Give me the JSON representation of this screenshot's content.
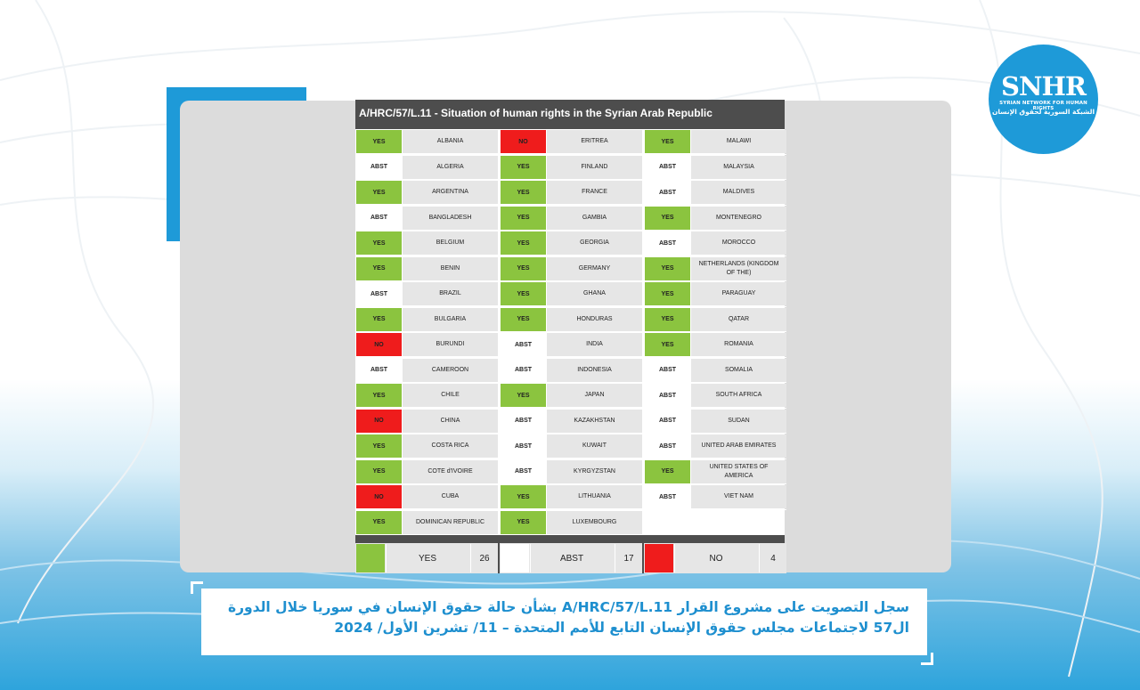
{
  "logo": {
    "mark": "SNHR",
    "tagline_en": "SYRIAN NETWORK FOR HUMAN RIGHTS",
    "tagline_ar": "الشبكة السورية لحقوق الإنسان"
  },
  "title": "A/HRC/57/L.11 - Situation of human rights in the Syrian Arab Republic",
  "columns": [
    [
      {
        "vote": "YES",
        "country": "ALBANIA"
      },
      {
        "vote": "ABST",
        "country": "ALGERIA"
      },
      {
        "vote": "YES",
        "country": "ARGENTINA"
      },
      {
        "vote": "ABST",
        "country": "BANGLADESH"
      },
      {
        "vote": "YES",
        "country": "BELGIUM"
      },
      {
        "vote": "YES",
        "country": "BENIN"
      },
      {
        "vote": "ABST",
        "country": "BRAZIL"
      },
      {
        "vote": "YES",
        "country": "BULGARIA"
      },
      {
        "vote": "NO",
        "country": "BURUNDI"
      },
      {
        "vote": "ABST",
        "country": "CAMEROON"
      },
      {
        "vote": "YES",
        "country": "CHILE"
      },
      {
        "vote": "NO",
        "country": "CHINA"
      },
      {
        "vote": "YES",
        "country": "COSTA RICA"
      },
      {
        "vote": "YES",
        "country": "COTE d'IVOIRE"
      },
      {
        "vote": "NO",
        "country": "CUBA"
      },
      {
        "vote": "YES",
        "country": "DOMINICAN REPUBLIC"
      }
    ],
    [
      {
        "vote": "NO",
        "country": "ERITREA"
      },
      {
        "vote": "YES",
        "country": "FINLAND"
      },
      {
        "vote": "YES",
        "country": "FRANCE"
      },
      {
        "vote": "YES",
        "country": "GAMBIA"
      },
      {
        "vote": "YES",
        "country": "GEORGIA"
      },
      {
        "vote": "YES",
        "country": "GERMANY"
      },
      {
        "vote": "YES",
        "country": "GHANA"
      },
      {
        "vote": "YES",
        "country": "HONDURAS"
      },
      {
        "vote": "ABST",
        "country": "INDIA"
      },
      {
        "vote": "ABST",
        "country": "INDONESIA"
      },
      {
        "vote": "YES",
        "country": "JAPAN"
      },
      {
        "vote": "ABST",
        "country": "KAZAKHSTAN"
      },
      {
        "vote": "ABST",
        "country": "KUWAIT"
      },
      {
        "vote": "ABST",
        "country": "KYRGYZSTAN"
      },
      {
        "vote": "YES",
        "country": "LITHUANIA"
      },
      {
        "vote": "YES",
        "country": "LUXEMBOURG"
      }
    ],
    [
      {
        "vote": "YES",
        "country": "MALAWI"
      },
      {
        "vote": "ABST",
        "country": "MALAYSIA"
      },
      {
        "vote": "ABST",
        "country": "MALDIVES"
      },
      {
        "vote": "YES",
        "country": "MONTENEGRO"
      },
      {
        "vote": "ABST",
        "country": "MOROCCO"
      },
      {
        "vote": "YES",
        "country": "NETHERLANDS (KINGDOM OF THE)"
      },
      {
        "vote": "YES",
        "country": "PARAGUAY"
      },
      {
        "vote": "YES",
        "country": "QATAR"
      },
      {
        "vote": "YES",
        "country": "ROMANIA"
      },
      {
        "vote": "ABST",
        "country": "SOMALIA"
      },
      {
        "vote": "ABST",
        "country": "SOUTH AFRICA"
      },
      {
        "vote": "ABST",
        "country": "SUDAN"
      },
      {
        "vote": "ABST",
        "country": "UNITED ARAB EMIRATES"
      },
      {
        "vote": "YES",
        "country": "UNITED STATES OF AMERICA"
      },
      {
        "vote": "ABST",
        "country": "VIET NAM"
      }
    ]
  ],
  "summary": [
    {
      "label": "YES",
      "count": "26",
      "color": "#8bc43f"
    },
    {
      "label": "ABST",
      "count": "17",
      "color": "#ffffff"
    },
    {
      "label": "NO",
      "count": "4",
      "color": "#ef1c1c"
    }
  ],
  "colors": {
    "yes": "#8bc43f",
    "no": "#ef1c1c",
    "abst": "#ffffff",
    "accent": "#1e9ad8"
  },
  "caption": {
    "line1": "سجل التصويت على مشروع القرار A/HRC/57/L.11 بشأن حالة حقوق الإنسان في سوريا خلال الدورة",
    "line2": "ال57 لاجتماعات مجلس حقوق الإنسان التابع للأمم المتحدة – 11/ تشرين الأول/ 2024"
  }
}
